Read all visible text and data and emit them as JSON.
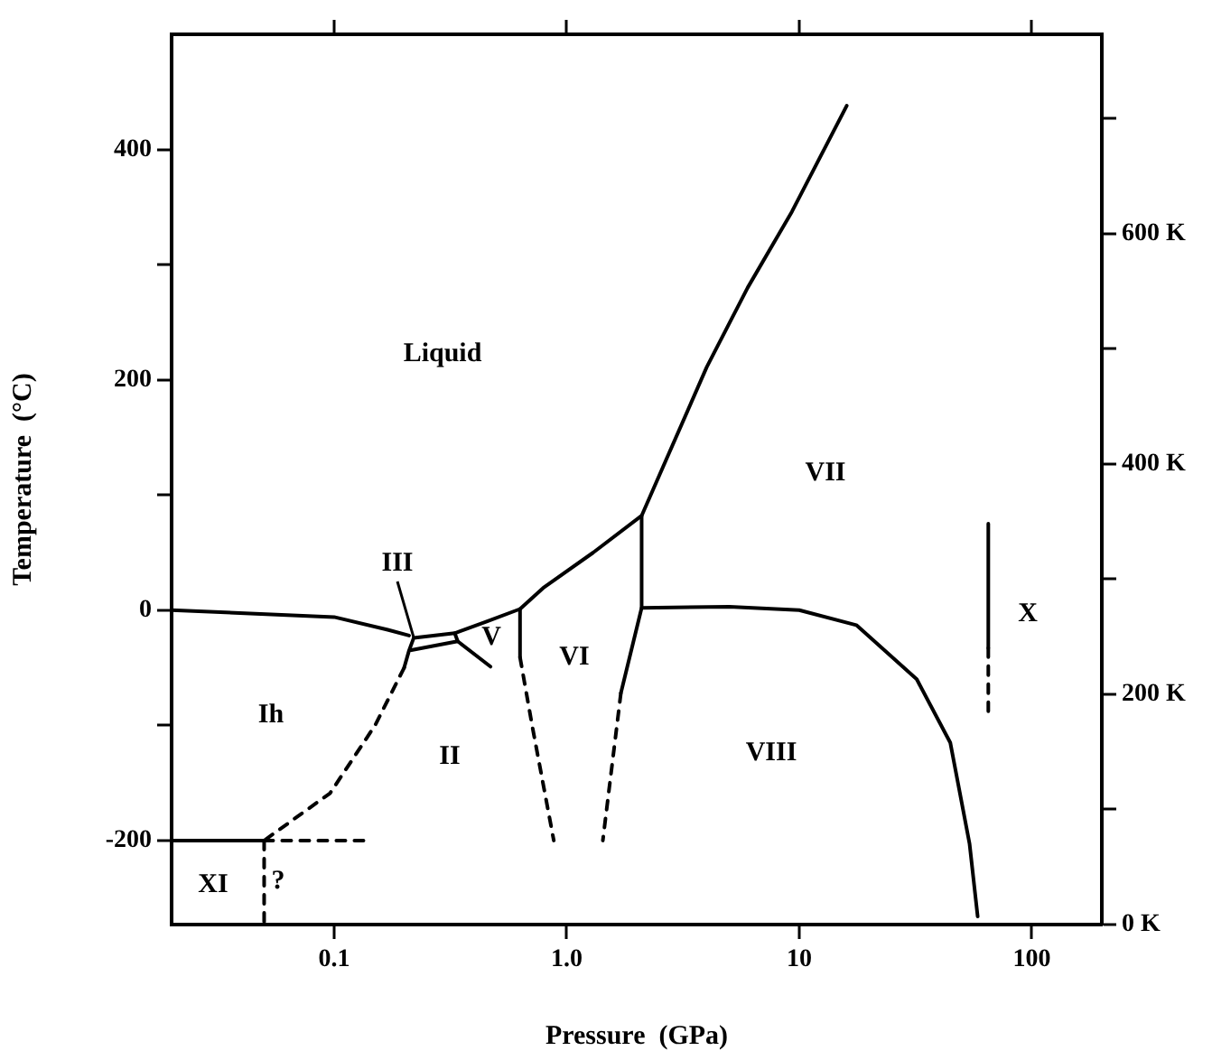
{
  "chart_data": {
    "type": "line",
    "xlabel": "Pressure  (GPa)",
    "ylabel": "Temperature  (°C)",
    "log": "x",
    "grid": false,
    "legend": false,
    "marker": "none",
    "xlim": [
      0.02,
      200
    ],
    "xticks": [
      0.1,
      {
        "value": 1,
        "label": "1.0"
      },
      10,
      100
    ],
    "ylim": [
      -273,
      500
    ],
    "yticks": [
      -200,
      {
        "value": -100,
        "label": null
      },
      0,
      {
        "value": 100,
        "label": null
      },
      200,
      {
        "value": 300,
        "label": null
      },
      400
    ],
    "y2lim": [
      0,
      773
    ],
    "y2ticks": [
      {
        "value": 0,
        "label": "0 K"
      },
      {
        "value": 100,
        "label": null
      },
      {
        "value": 200,
        "label": "200 K"
      },
      {
        "value": 300,
        "label": null
      },
      {
        "value": 400,
        "label": "400 K"
      },
      {
        "value": 500,
        "label": null
      },
      {
        "value": 600,
        "label": "600 K"
      },
      {
        "value": 700,
        "label": null
      }
    ],
    "series": [
      {
        "color": "#000000",
        "x": [
          0.02,
          0.1,
          0.17,
          0.21
        ],
        "values": [
          0,
          -6,
          -17,
          -22
        ]
      },
      {
        "color": "#000000",
        "x": [
          0.22,
          0.33,
          0.34,
          0.21,
          0.22,
          0.21,
          0.2
        ],
        "values": [
          -24,
          -20,
          -27,
          -35,
          -24,
          -35,
          -50
        ]
      },
      {
        "color": "#000000",
        "x": [
          0.33,
          0.45,
          0.63,
          0.8,
          1.3,
          2.1,
          4,
          6,
          9.3,
          16
        ],
        "values": [
          -20,
          -10,
          1,
          20,
          50,
          82,
          211,
          280,
          346,
          438
        ]
      },
      {
        "color": "#000000",
        "x": [
          0.34,
          0.47
        ],
        "values": [
          -27,
          -49
        ]
      },
      {
        "color": "#000000",
        "x": [
          0.63,
          0.63
        ],
        "values": [
          1,
          -41
        ]
      },
      {
        "color": "#000000",
        "line_style": "dashed",
        "x": [
          0.63,
          0.71,
          0.88
        ],
        "values": [
          -41,
          -100,
          -200
        ]
      },
      {
        "color": "#000000",
        "x": [
          2.1,
          2.1,
          1.71
        ],
        "values": [
          82,
          2,
          -72
        ]
      },
      {
        "color": "#000000",
        "line_style": "dashed",
        "x": [
          1.71,
          1.43
        ],
        "values": [
          -72,
          -200
        ]
      },
      {
        "color": "#000000",
        "x": [
          2.1,
          5,
          10,
          17.6,
          32,
          44.6,
          54,
          58.5
        ],
        "values": [
          2,
          3,
          0,
          -13,
          -60,
          -115,
          -203,
          -266
        ]
      },
      {
        "color": "#000000",
        "line_style": "dashed",
        "x": [
          0.2,
          0.15,
          0.096,
          0.05
        ],
        "values": [
          -50,
          -100,
          -159,
          -200
        ]
      },
      {
        "color": "#000000",
        "x": [
          0.02,
          0.05
        ],
        "values": [
          -200,
          -200
        ]
      },
      {
        "color": "#000000",
        "line_style": "dashed",
        "x": [
          0.05,
          0.138
        ],
        "values": [
          -200,
          -200
        ]
      },
      {
        "color": "#000000",
        "line_style": "dashed",
        "x": [
          0.05,
          0.05
        ],
        "values": [
          -200,
          -273
        ]
      },
      {
        "color": "#000000",
        "x": [
          65,
          65
        ],
        "values": [
          75,
          -33
        ]
      },
      {
        "color": "#000000",
        "line_style": "dashed",
        "x": [
          65,
          65
        ],
        "values": [
          -33,
          -92
        ]
      }
    ],
    "annotations": [
      "III",
      "Liquid",
      "VII",
      "X",
      "VI",
      "V",
      "Ih",
      "II",
      "VIII",
      "XI",
      "?"
    ]
  }
}
